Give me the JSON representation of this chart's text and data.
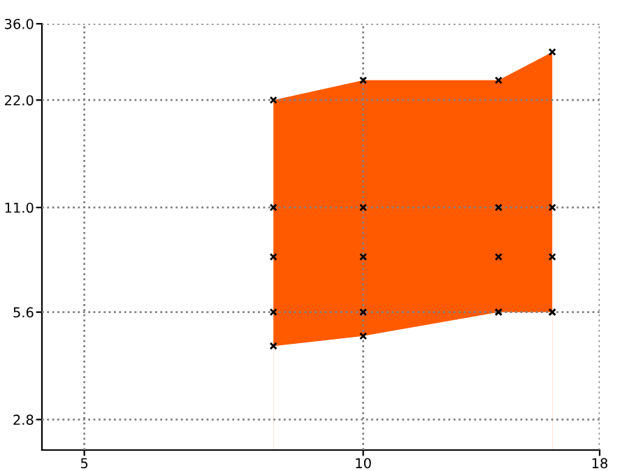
{
  "chart_data": {
    "type": "area",
    "log": "xy",
    "x": [
      8,
      10,
      14,
      16
    ],
    "series": [
      {
        "values": [
          22,
          25,
          25,
          30
        ],
        "color": "#ff5a00",
        "marker": "cross"
      },
      {
        "values": [
          4.5,
          4.8,
          5.6,
          5.6
        ],
        "color": "#ffffff"
      },
      {
        "type": "scatter",
        "values": [
          11,
          11,
          11,
          11
        ],
        "color": "#000000",
        "marker": "cross"
      },
      {
        "type": "scatter",
        "values": [
          8,
          8,
          8,
          8
        ],
        "color": "#000000",
        "marker": "cross"
      },
      {
        "type": "scatter",
        "values": [
          5.6,
          5.6,
          5.6,
          5.6
        ],
        "color": "#000000",
        "marker": "cross"
      },
      {
        "type": "scatter",
        "values": [
          4.5,
          4.8,
          5.6,
          5.6
        ],
        "color": "#000000",
        "marker": "cross"
      }
    ],
    "xlim": [
      4.5,
      18
    ],
    "xticks": [
      5,
      10,
      18
    ],
    "ylim": [
      2.3,
      36
    ],
    "yticks": [
      {
        "value": 2.8,
        "label": "2.8"
      },
      {
        "value": 5.6,
        "label": "5.6"
      },
      {
        "value": 11,
        "label": "11.0"
      },
      {
        "value": 22,
        "label": "22.0"
      },
      {
        "value": 36,
        "label": "36.0"
      }
    ],
    "grid": true
  }
}
